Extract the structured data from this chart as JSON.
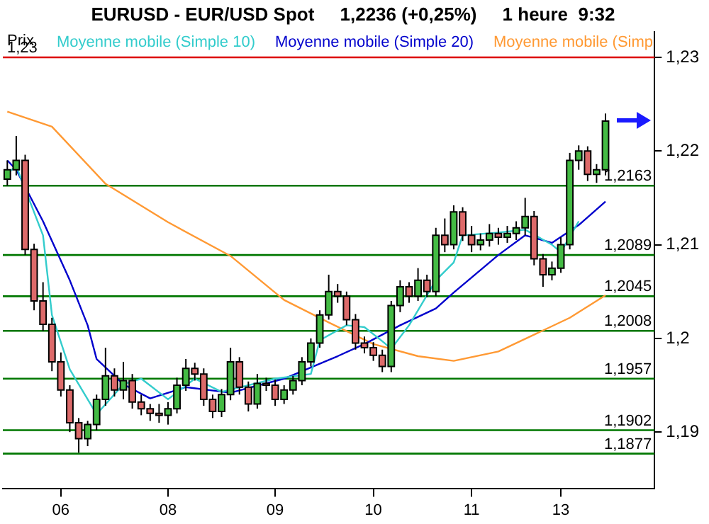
{
  "chart_data": {
    "type": "candlestick",
    "title": "EURUSD - EUR/USD Spot     1,2236 (+0,25%)     1 heure  9:32",
    "ylabel": "Prix",
    "categories": [
      null,
      null,
      null,
      null,
      null,
      null,
      "06",
      null,
      null,
      null,
      null,
      null,
      null,
      null,
      null,
      null,
      null,
      null,
      "08",
      null,
      null,
      null,
      null,
      null,
      null,
      null,
      null,
      null,
      null,
      null,
      "09",
      null,
      null,
      null,
      null,
      null,
      null,
      null,
      null,
      null,
      null,
      "10",
      null,
      null,
      null,
      null,
      null,
      null,
      null,
      null,
      null,
      null,
      "11",
      null,
      null,
      null,
      null,
      null,
      null,
      null,
      null,
      null,
      "13",
      null,
      null,
      null,
      null,
      null,
      null,
      null,
      null,
      null,
      null
    ],
    "ohlc": [
      [
        1.217,
        1.219,
        1.2163,
        1.218
      ],
      [
        1.218,
        1.2216,
        1.2174,
        1.219
      ],
      [
        1.219,
        1.2196,
        1.2089,
        1.2095
      ],
      [
        1.2095,
        1.2101,
        1.203,
        1.204
      ],
      [
        1.204,
        1.206,
        1.2008,
        1.2015
      ],
      [
        1.2015,
        1.2022,
        1.1965,
        1.1975
      ],
      [
        1.1975,
        1.1985,
        1.1938,
        1.1945
      ],
      [
        1.1945,
        1.195,
        1.19,
        1.191
      ],
      [
        1.191,
        1.1915,
        1.1878,
        1.1893
      ],
      [
        1.1893,
        1.1912,
        1.1885,
        1.1908
      ],
      [
        1.1908,
        1.194,
        1.1902,
        1.1935
      ],
      [
        1.1935,
        1.199,
        1.1928,
        1.196
      ],
      [
        1.196,
        1.1968,
        1.1938,
        1.1945
      ],
      [
        1.1945,
        1.1975,
        1.1935,
        1.1955
      ],
      [
        1.1955,
        1.1962,
        1.1925,
        1.1932
      ],
      [
        1.1932,
        1.194,
        1.1918,
        1.1925
      ],
      [
        1.1925,
        1.193,
        1.1912,
        1.192
      ],
      [
        1.192,
        1.193,
        1.191,
        1.1918
      ],
      [
        1.1918,
        1.1932,
        1.1908,
        1.1925
      ],
      [
        1.1925,
        1.1958,
        1.192,
        1.195
      ],
      [
        1.195,
        1.1978,
        1.1944,
        1.1968
      ],
      [
        1.1968,
        1.1974,
        1.1955,
        1.1962
      ],
      [
        1.1962,
        1.1968,
        1.1928,
        1.1935
      ],
      [
        1.1935,
        1.194,
        1.1915,
        1.1922
      ],
      [
        1.1922,
        1.1946,
        1.1916,
        1.194
      ],
      [
        1.194,
        1.199,
        1.1934,
        1.1975
      ],
      [
        1.1975,
        1.198,
        1.194,
        1.1948
      ],
      [
        1.1948,
        1.1954,
        1.1922,
        1.193
      ],
      [
        1.193,
        1.1962,
        1.1925,
        1.1952
      ],
      [
        1.1952,
        1.1958,
        1.1944,
        1.195
      ],
      [
        1.195,
        1.1956,
        1.1928,
        1.1935
      ],
      [
        1.1935,
        1.195,
        1.193,
        1.1945
      ],
      [
        1.1945,
        1.196,
        1.194,
        1.1955
      ],
      [
        1.1955,
        1.198,
        1.195,
        1.1975
      ],
      [
        1.1975,
        1.2,
        1.197,
        1.1995
      ],
      [
        1.1995,
        1.203,
        1.199,
        1.2025
      ],
      [
        1.2025,
        1.2068,
        1.202,
        1.205
      ],
      [
        1.205,
        1.2058,
        1.2038,
        1.2045
      ],
      [
        1.2045,
        1.205,
        1.2014,
        1.202
      ],
      [
        1.202,
        1.2026,
        1.1988,
        1.1995
      ],
      [
        1.1995,
        1.2002,
        1.1984,
        1.199
      ],
      [
        1.199,
        1.1996,
        1.1976,
        1.1982
      ],
      [
        1.1982,
        1.1988,
        1.1964,
        1.197
      ],
      [
        1.197,
        1.204,
        1.1964,
        1.2035
      ],
      [
        1.2035,
        1.2062,
        1.2028,
        1.2055
      ],
      [
        1.2055,
        1.206,
        1.2038,
        1.2045
      ],
      [
        1.2045,
        1.2075,
        1.204,
        1.2062
      ],
      [
        1.2062,
        1.2068,
        1.2044,
        1.205
      ],
      [
        1.205,
        1.2118,
        1.2045,
        1.211
      ],
      [
        1.211,
        1.2128,
        1.2092,
        1.21
      ],
      [
        1.21,
        1.2142,
        1.2095,
        1.2135
      ],
      [
        1.2135,
        1.214,
        1.2104,
        1.211
      ],
      [
        1.211,
        1.212,
        1.2092,
        1.21
      ],
      [
        1.21,
        1.2112,
        1.2094,
        1.2105
      ],
      [
        1.2105,
        1.2122,
        1.2098,
        1.2112
      ],
      [
        1.2112,
        1.2118,
        1.21,
        1.2108
      ],
      [
        1.2108,
        1.212,
        1.2102,
        1.2112
      ],
      [
        1.2112,
        1.2125,
        1.2105,
        1.2118
      ],
      [
        1.2118,
        1.215,
        1.211,
        1.213
      ],
      [
        1.213,
        1.2136,
        1.2078,
        1.2085
      ],
      [
        1.2085,
        1.209,
        1.2055,
        1.2068
      ],
      [
        1.2068,
        1.2082,
        1.2062,
        1.2075
      ],
      [
        1.2075,
        1.2108,
        1.207,
        1.21
      ],
      [
        1.21,
        1.2198,
        1.2095,
        1.219
      ],
      [
        1.219,
        1.2206,
        1.218,
        1.22
      ],
      [
        1.22,
        1.2205,
        1.2168,
        1.2175
      ],
      [
        1.2175,
        1.2186,
        1.2166,
        1.218
      ],
      [
        1.218,
        1.224,
        1.2174,
        1.2232
      ],
      null,
      null,
      null,
      null,
      null
    ],
    "series": [
      {
        "type": "line",
        "name": "Moyenne mobile (Simple 10)",
        "color": "#33cccc",
        "values": [
          1.2176,
          1.2184,
          null,
          null,
          1.211,
          1.2025,
          null,
          1.1967,
          null,
          1.1935,
          1.1919,
          null,
          null,
          1.1951,
          null,
          1.1957,
          null,
          null,
          1.1935,
          null,
          null,
          1.1957,
          null,
          null,
          1.1943,
          null,
          null,
          null,
          null,
          null,
          1.1957,
          null,
          null,
          null,
          1.1962,
          1.1998,
          null,
          null,
          1.2014,
          null,
          1.2012,
          null,
          1.1997,
          1.1989,
          null,
          1.2014,
          null,
          null,
          1.2062,
          null,
          1.2081,
          1.211,
          null,
          null,
          null,
          1.2113,
          null,
          null,
          1.2116,
          null,
          null,
          1.21,
          1.2092,
          null,
          1.2125,
          null,
          null,
          null,
          null,
          null,
          null,
          null,
          null
        ]
      },
      {
        "type": "line",
        "name": "Moyenne mobile (Simple 20)",
        "color": "#0000cc",
        "values": [
          1.219,
          1.218,
          null,
          null,
          1.2125,
          null,
          null,
          1.2062,
          null,
          1.2014,
          1.1978,
          null,
          null,
          1.1951,
          null,
          null,
          1.1936,
          null,
          null,
          null,
          1.1948,
          null,
          null,
          null,
          null,
          1.1942,
          null,
          null,
          null,
          null,
          null,
          1.1957,
          null,
          null,
          null,
          null,
          null,
          1.1981,
          null,
          null,
          1.1994,
          null,
          null,
          null,
          1.2014,
          null,
          null,
          null,
          1.2032,
          null,
          1.2049,
          null,
          null,
          null,
          null,
          1.2089,
          null,
          null,
          1.211,
          null,
          null,
          1.2102,
          null,
          null,
          1.2121,
          null,
          null,
          1.2146,
          null,
          null,
          null,
          null,
          null
        ]
      },
      {
        "type": "line",
        "name": "Moyenne mobile (Simp",
        "color": "#ff9933",
        "values": [
          1.2242,
          null,
          null,
          null,
          null,
          1.2226,
          null,
          null,
          null,
          null,
          null,
          1.2165,
          null,
          null,
          null,
          null,
          null,
          null,
          1.2124,
          null,
          null,
          null,
          null,
          null,
          null,
          1.2088,
          null,
          null,
          null,
          null,
          null,
          1.2041,
          null,
          null,
          null,
          null,
          1.2017,
          null,
          null,
          null,
          null,
          1.1994,
          null,
          null,
          null,
          null,
          1.1981,
          null,
          null,
          null,
          1.1976,
          null,
          null,
          null,
          null,
          1.1986,
          null,
          null,
          null,
          1.2004,
          null,
          null,
          null,
          1.2022,
          null,
          null,
          null,
          1.2046,
          null,
          null,
          null,
          null,
          null
        ]
      }
    ],
    "ylim": [
      1.184,
      1.2327
    ],
    "yticks": [
      {
        "value": 1.19,
        "label": "1,19"
      },
      {
        "value": 1.2,
        "label": "1,2"
      },
      {
        "value": 1.21,
        "label": "1,21"
      },
      {
        "value": 1.22,
        "label": "1,22"
      },
      {
        "value": 1.23,
        "label": "1,23"
      }
    ],
    "ref_lines": [
      {
        "axis": "y",
        "value": 1.23,
        "label": "1,23",
        "color": "#dd0000"
      },
      {
        "axis": "y",
        "value": 1.2163,
        "label": "1,2163",
        "color": "#007700"
      },
      {
        "axis": "y",
        "value": 1.2089,
        "label": "1,2089",
        "color": "#007700"
      },
      {
        "axis": "y",
        "value": 1.2045,
        "label": "1,2045",
        "color": "#007700"
      },
      {
        "axis": "y",
        "value": 1.2008,
        "label": "1,2008",
        "color": "#007700"
      },
      {
        "axis": "y",
        "value": 1.1957,
        "label": "1,1957",
        "color": "#007700"
      },
      {
        "axis": "y",
        "value": 1.1902,
        "label": "1,1902",
        "color": "#007700"
      },
      {
        "axis": "y",
        "value": 1.1877,
        "label": "1,1877",
        "color": "#007700"
      }
    ],
    "legend": "top",
    "marker": "none",
    "line_style": "solid",
    "grid": false
  }
}
